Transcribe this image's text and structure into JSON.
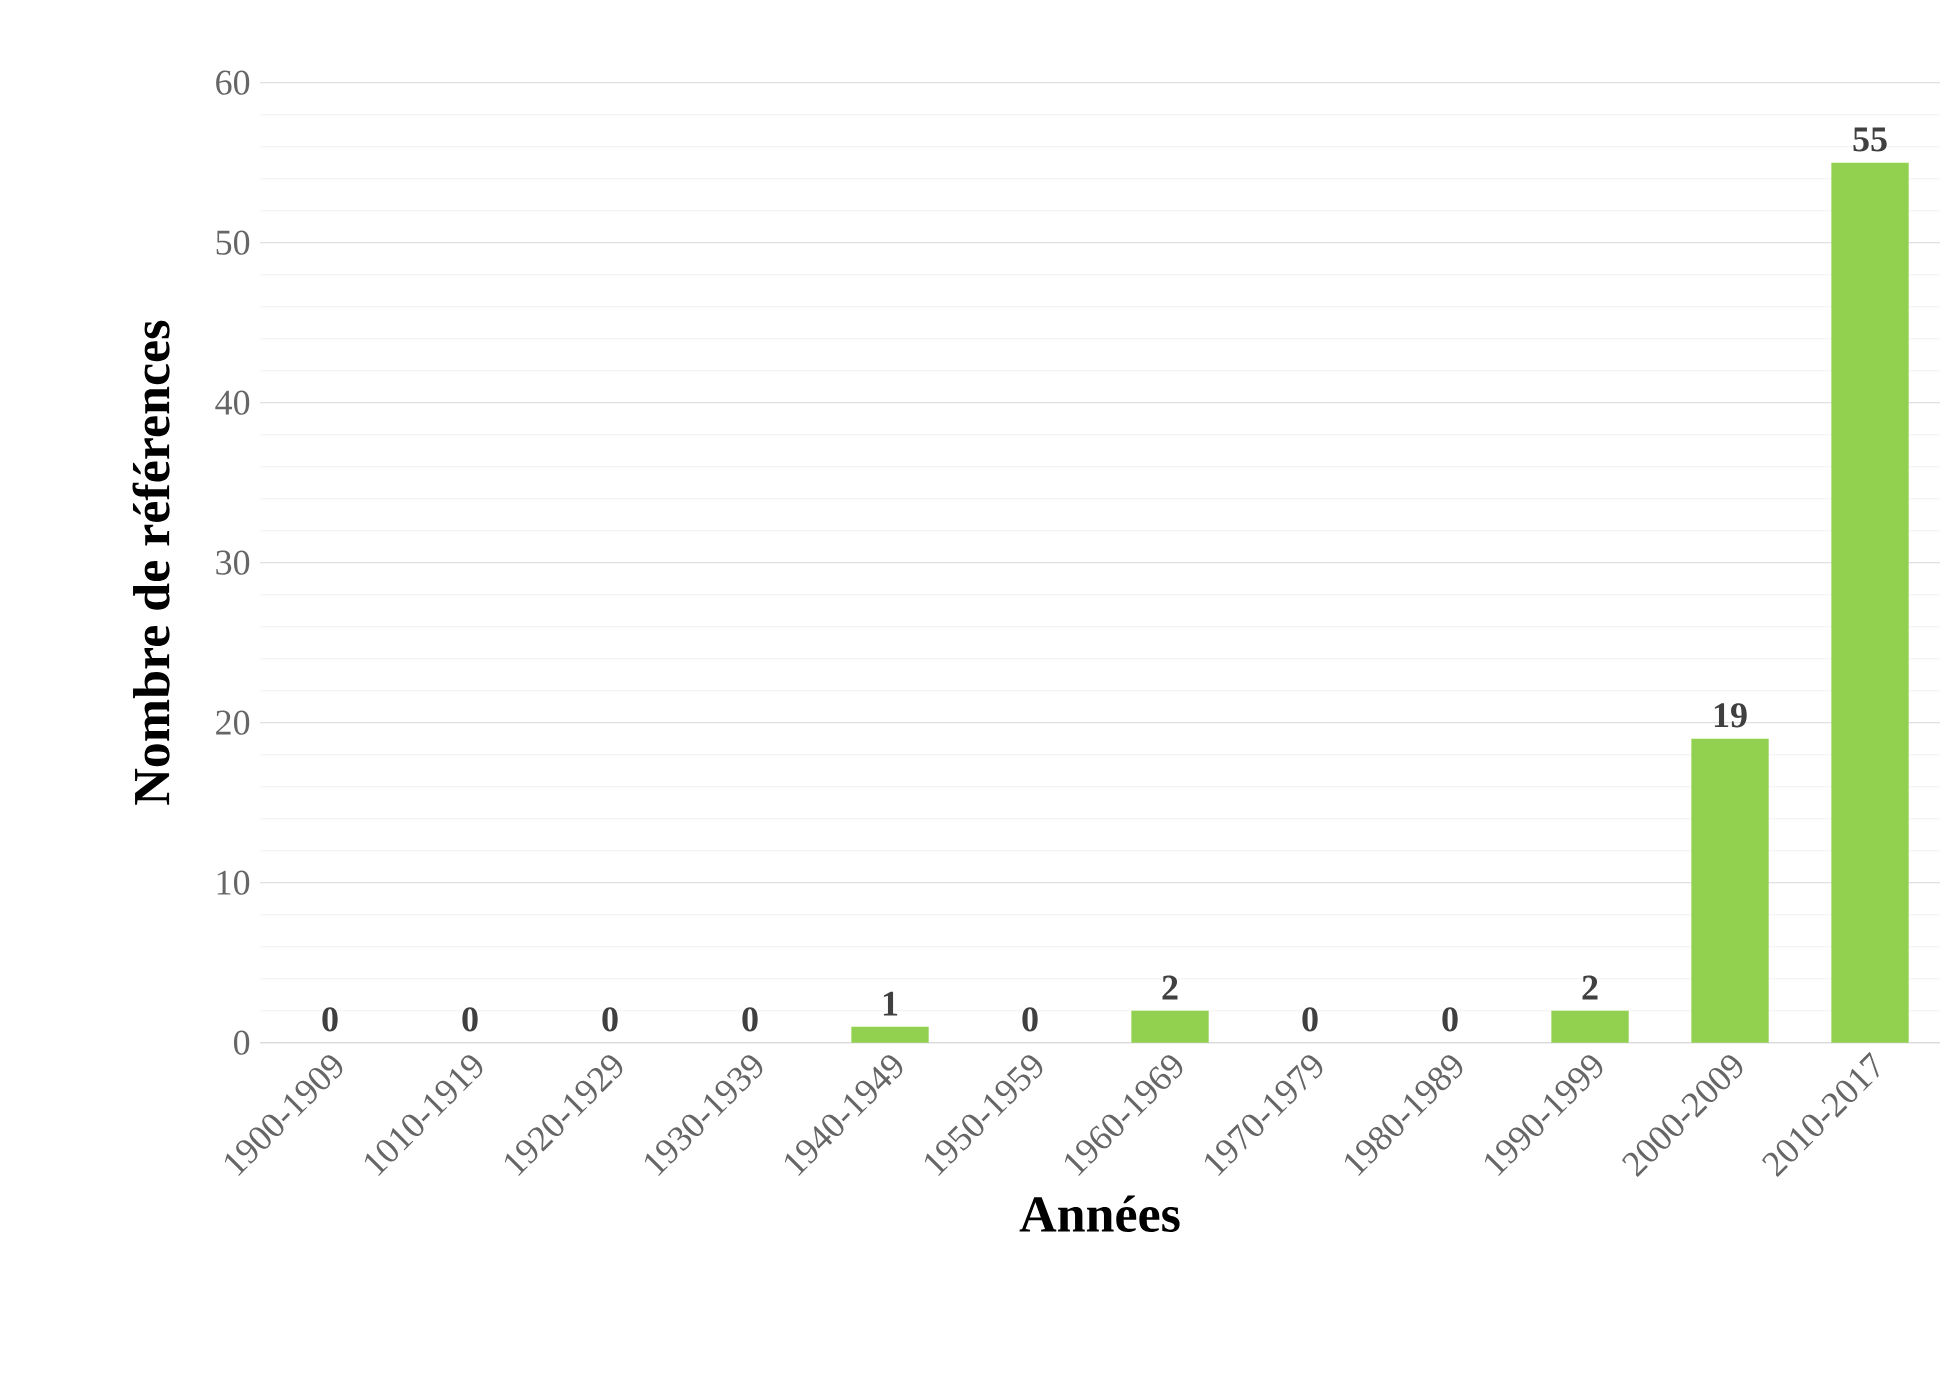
{
  "chart_data": {
    "type": "bar",
    "xlabel": "Années",
    "ylabel": "Nombre de références",
    "categories": [
      "1900-1909",
      "1010-1919",
      "1920-1929",
      "1930-1939",
      "1940-1949",
      "1950-1959",
      "1960-1969",
      "1970-1979",
      "1980-1989",
      "1990-1999",
      "2000-2009",
      "2010-2017"
    ],
    "values": [
      0,
      0,
      0,
      0,
      1,
      0,
      2,
      0,
      0,
      2,
      19,
      55
    ],
    "color": "#92d050",
    "ylim": [
      0,
      60
    ],
    "yticks": [
      0,
      10,
      20,
      30,
      40,
      50,
      60
    ],
    "grid": "y",
    "data_labels": true
  }
}
